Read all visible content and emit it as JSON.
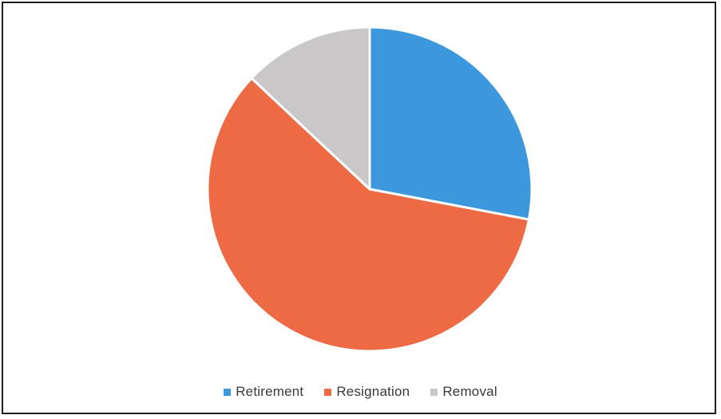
{
  "chart_data": {
    "type": "pie",
    "title": "",
    "categories": [
      "Retirement",
      "Resignation",
      "Removal"
    ],
    "values": [
      28,
      59,
      13
    ],
    "colors": [
      "#3d97dc",
      "#ee6a45",
      "#c9c7c8"
    ],
    "start_angle_deg": 0,
    "direction": "clockwise",
    "legend_position": "bottom"
  },
  "legend": {
    "items": [
      {
        "label": "Retirement",
        "color": "#3d97dc"
      },
      {
        "label": "Resignation",
        "color": "#ee6a45"
      },
      {
        "label": "Removal",
        "color": "#c9c7c8"
      }
    ]
  }
}
